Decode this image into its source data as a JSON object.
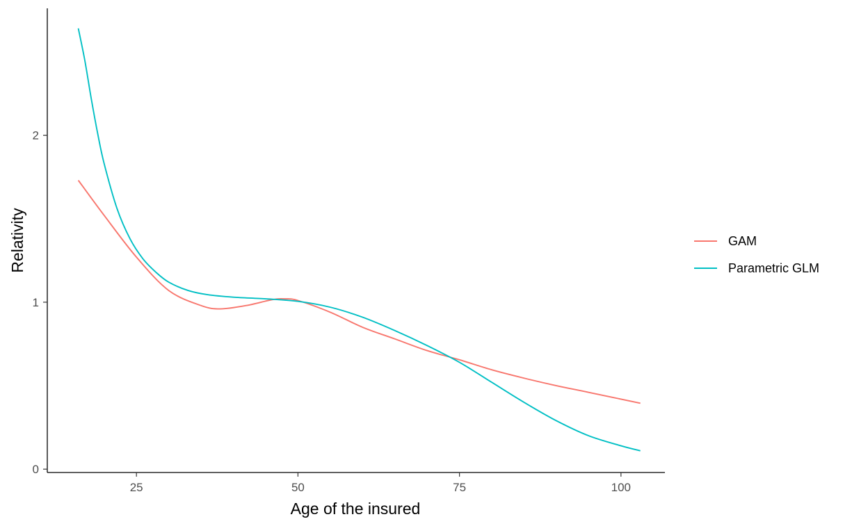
{
  "chart_data": {
    "type": "line",
    "title": "",
    "xlabel": "Age of the insured",
    "ylabel": "Relativity",
    "xlim": [
      11.2,
      106.8
    ],
    "ylim": [
      -0.02,
      2.76
    ],
    "x_ticks": [
      25,
      50,
      75,
      100
    ],
    "y_ticks": [
      0,
      1,
      2
    ],
    "grid": false,
    "legend_position": "right",
    "series": [
      {
        "name": "GAM",
        "color": "#F8766D",
        "x": [
          16,
          20,
          25,
          30,
          35,
          38,
          42,
          46,
          48,
          50,
          55,
          60,
          65,
          70,
          75,
          80,
          85,
          90,
          95,
          103
        ],
        "y": [
          1.73,
          1.52,
          1.27,
          1.07,
          0.98,
          0.96,
          0.98,
          1.015,
          1.02,
          1.01,
          0.94,
          0.85,
          0.78,
          0.71,
          0.655,
          0.595,
          0.545,
          0.5,
          0.46,
          0.395
        ]
      },
      {
        "name": "Parametric GLM",
        "color": "#00BFC4",
        "x": [
          16,
          17,
          18,
          19,
          20,
          22,
          24,
          26,
          28,
          30,
          33,
          36,
          40,
          45,
          50,
          55,
          60,
          65,
          70,
          75,
          80,
          85,
          90,
          95,
          100,
          103
        ],
        "y": [
          2.64,
          2.45,
          2.22,
          2.01,
          1.83,
          1.56,
          1.38,
          1.26,
          1.18,
          1.12,
          1.07,
          1.045,
          1.03,
          1.02,
          1.005,
          0.97,
          0.91,
          0.83,
          0.74,
          0.64,
          0.52,
          0.4,
          0.29,
          0.2,
          0.14,
          0.11
        ]
      }
    ]
  }
}
